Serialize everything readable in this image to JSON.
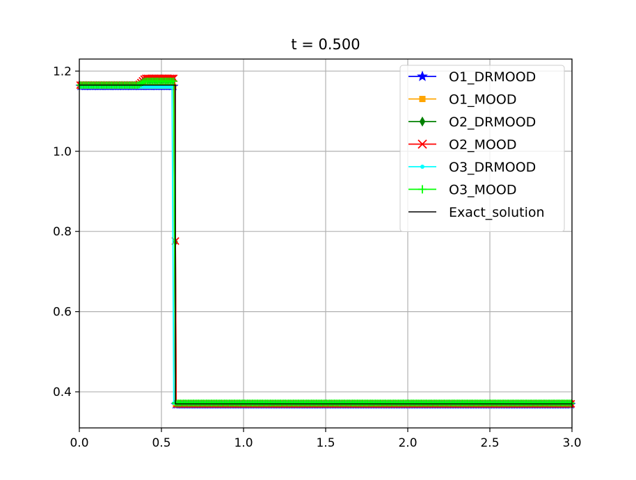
{
  "chart_data": {
    "type": "line",
    "title": "t = 0.500",
    "xlabel": "",
    "ylabel": "",
    "xlim": [
      0.0,
      3.0
    ],
    "ylim": [
      0.31,
      1.23
    ],
    "xticks": [
      "0.0",
      "0.5",
      "1.0",
      "1.5",
      "2.0",
      "2.5",
      "3.0"
    ],
    "xtick_values": [
      0.0,
      0.5,
      1.0,
      1.5,
      2.0,
      2.5,
      3.0
    ],
    "yticks": [
      "0.4",
      "0.6",
      "0.8",
      "1.0",
      "1.2"
    ],
    "ytick_values": [
      0.4,
      0.6,
      0.8,
      1.0,
      1.2
    ],
    "grid": true,
    "legend_position": "upper-right",
    "series": [
      {
        "name": "O1_DRMOOD",
        "color": "#0000ff",
        "marker": "star",
        "x": [
          0.0,
          0.575,
          0.585,
          3.0
        ],
        "y": [
          1.162,
          1.162,
          0.368,
          0.368
        ]
      },
      {
        "name": "O1_MOOD",
        "color": "#ffa500",
        "marker": "square",
        "x": [
          0.0,
          0.575,
          0.585,
          3.0
        ],
        "y": [
          1.162,
          1.162,
          0.368,
          0.368
        ]
      },
      {
        "name": "O2_DRMOOD",
        "color": "#008000",
        "marker": "diamond",
        "x": [
          0.0,
          0.36,
          0.4,
          0.58,
          0.59,
          3.0
        ],
        "y": [
          1.165,
          1.165,
          1.178,
          1.178,
          0.37,
          0.37
        ]
      },
      {
        "name": "O2_MOOD",
        "color": "#ff0000",
        "marker": "x",
        "x": [
          0.0,
          0.36,
          0.4,
          0.58,
          0.59,
          3.0
        ],
        "y": [
          1.165,
          1.165,
          1.182,
          1.182,
          0.37,
          0.37
        ]
      },
      {
        "name": "O3_DRMOOD",
        "color": "#00ffff",
        "marker": "point",
        "x": [
          0.0,
          0.565,
          0.575,
          3.0
        ],
        "y": [
          1.16,
          1.16,
          0.372,
          0.372
        ]
      },
      {
        "name": "O3_MOOD",
        "color": "#00ff00",
        "marker": "plus",
        "x": [
          0.0,
          0.36,
          0.4,
          0.575,
          0.585,
          3.0
        ],
        "y": [
          1.165,
          1.165,
          1.175,
          1.175,
          0.372,
          0.372
        ]
      },
      {
        "name": "Exact_solution",
        "color": "#000000",
        "marker": "none",
        "x": [
          0.0,
          0.585,
          0.585,
          3.0
        ],
        "y": [
          1.165,
          1.165,
          0.37,
          0.37
        ]
      }
    ]
  }
}
